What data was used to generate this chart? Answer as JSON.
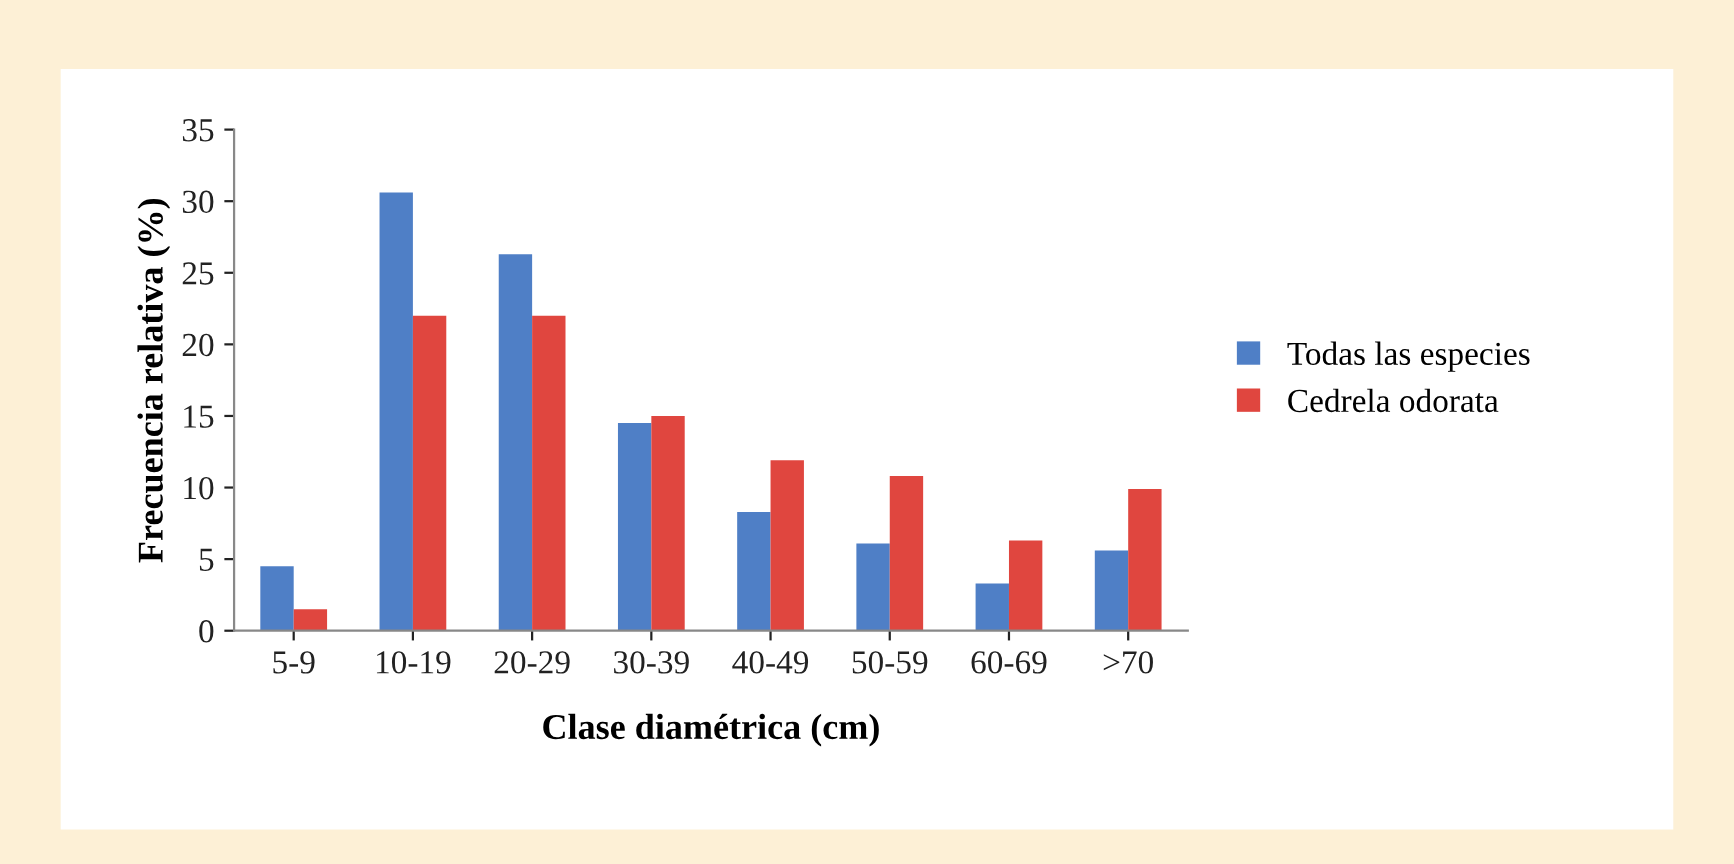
{
  "chart_data": {
    "type": "bar",
    "xlabel": "Clase diamétrica (cm)",
    "ylabel": "Frecuencia relativa (%)",
    "categories": [
      "5-9",
      "10-19",
      "20-29",
      "30-39",
      "40-49",
      "50-59",
      "60-69",
      ">70"
    ],
    "series": [
      {
        "name": "Todas las especies",
        "color": "#4f7fc6",
        "values": [
          4.5,
          30.6,
          26.3,
          14.5,
          8.3,
          6.1,
          3.3,
          5.6
        ]
      },
      {
        "name": "Cedrela odorata",
        "color": "#e0463f",
        "values": [
          1.5,
          22,
          22,
          15,
          11.9,
          10.8,
          6.3,
          9.9
        ]
      }
    ],
    "ylim": [
      0,
      35
    ],
    "yticks": [
      0,
      5,
      10,
      15,
      20,
      25,
      30,
      35
    ],
    "grid": false,
    "legend": "right"
  }
}
